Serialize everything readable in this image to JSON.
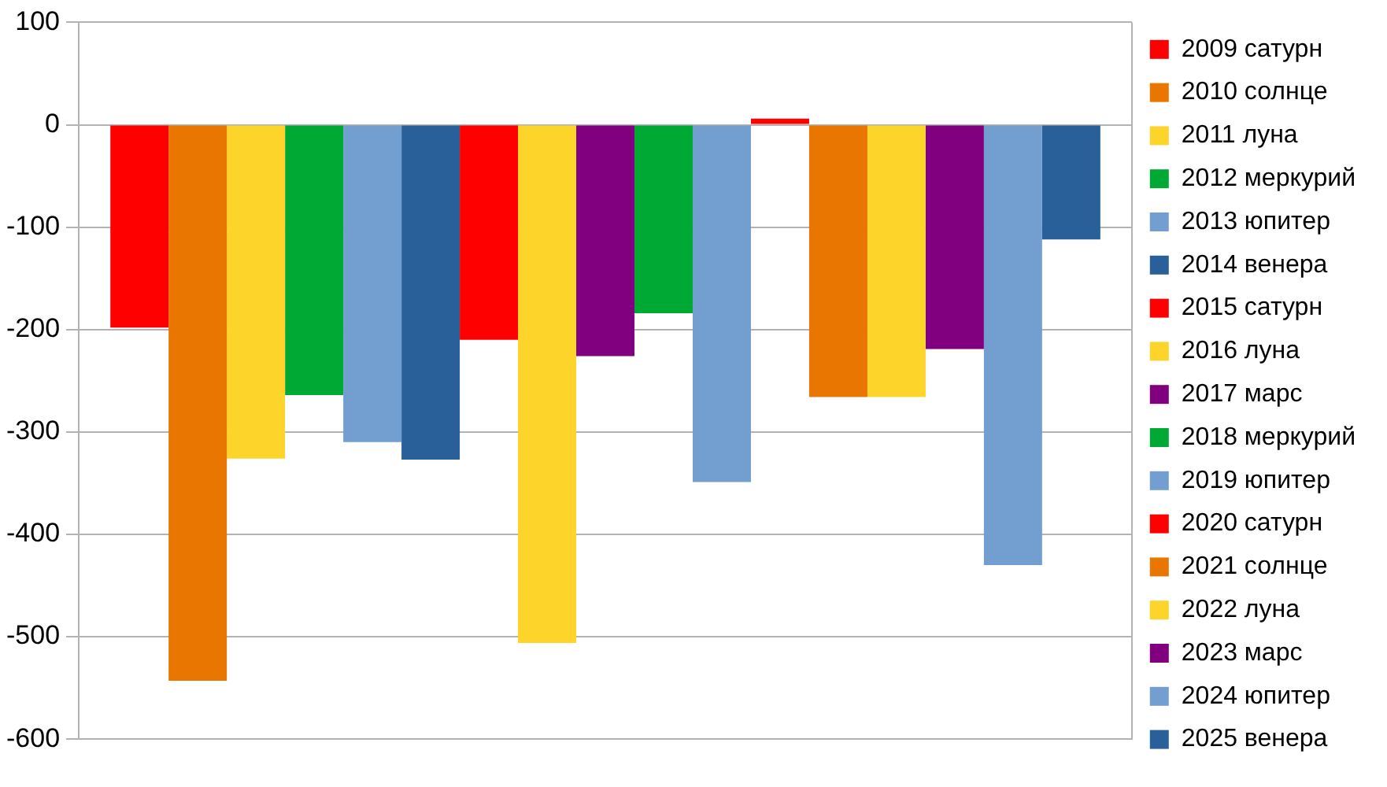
{
  "chart_data": {
    "type": "bar",
    "categories": [
      null
    ],
    "series": [
      {
        "name": "2009 сатурн",
        "color": "#ff0000",
        "values": [
          -198
        ]
      },
      {
        "name": "2010 солнце",
        "color": "#e97600",
        "values": [
          -543
        ]
      },
      {
        "name": "2011 луна",
        "color": "#fdd42a",
        "values": [
          -326
        ]
      },
      {
        "name": "2012 меркурий",
        "color": "#00a933",
        "values": [
          -264
        ]
      },
      {
        "name": "2013 юпитер",
        "color": "#729fcf",
        "values": [
          -310
        ]
      },
      {
        "name": "2014 венера",
        "color": "#2a6099",
        "values": [
          -327
        ]
      },
      {
        "name": "2015 сатурн",
        "color": "#ff0000",
        "values": [
          -210
        ]
      },
      {
        "name": "2016 луна",
        "color": "#fdd42a",
        "values": [
          -506
        ]
      },
      {
        "name": "2017 марс",
        "color": "#800080",
        "values": [
          -226
        ]
      },
      {
        "name": "2018 меркурий",
        "color": "#00a933",
        "values": [
          -184
        ]
      },
      {
        "name": "2019 юпитер",
        "color": "#729fcf",
        "values": [
          -349
        ]
      },
      {
        "name": "2020 сатурн",
        "color": "#ff0000",
        "values": [
          6
        ]
      },
      {
        "name": "2021 солнце",
        "color": "#e97600",
        "values": [
          -266
        ]
      },
      {
        "name": "2022 луна",
        "color": "#fdd42a",
        "values": [
          -266
        ]
      },
      {
        "name": "2023 марс",
        "color": "#800080",
        "values": [
          -219
        ]
      },
      {
        "name": "2024 юпитер",
        "color": "#729fcf",
        "values": [
          -430
        ]
      },
      {
        "name": "2025 венера",
        "color": "#2a6099",
        "values": [
          -112
        ]
      }
    ],
    "ylim": [
      -600,
      100
    ],
    "yticks": [
      -600,
      -500,
      -400,
      -300,
      -200,
      -100,
      0,
      100
    ],
    "grid": "y",
    "legend": "right"
  }
}
